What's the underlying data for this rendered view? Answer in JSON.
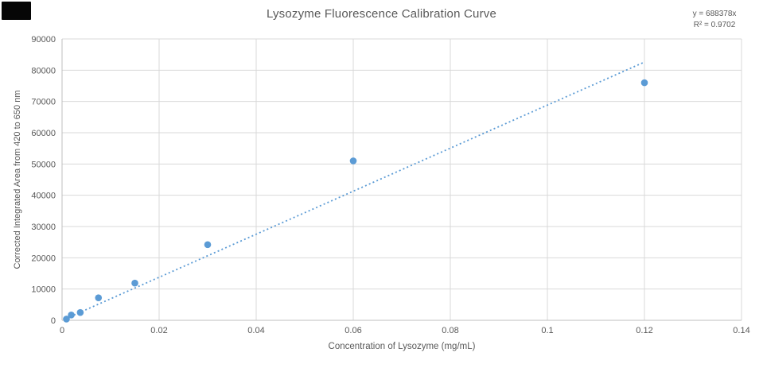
{
  "corner_artifact": {
    "color": "#060606"
  },
  "chart_data": {
    "type": "scatter",
    "title": "Lysozyme Fluorescence Calibration Curve",
    "xlabel": "Concentration of Lysozyme (mg/mL)",
    "ylabel": "Corrected Integrated Area from 420 to 650 nm",
    "xlim": [
      0,
      0.14
    ],
    "ylim": [
      0,
      90000
    ],
    "xticks": [
      0,
      0.02,
      0.04,
      0.06,
      0.08,
      0.1,
      0.12,
      0.14
    ],
    "xtick_labels": [
      "0",
      "0.02",
      "0.04",
      "0.06",
      "0.08",
      "0.1",
      "0.12",
      "0.14"
    ],
    "yticks": [
      0,
      10000,
      20000,
      30000,
      40000,
      50000,
      60000,
      70000,
      80000,
      90000
    ],
    "ytick_labels": [
      "0",
      "10000",
      "20000",
      "30000",
      "40000",
      "50000",
      "60000",
      "70000",
      "80000",
      "90000"
    ],
    "grid": true,
    "legend": "none",
    "series": [
      {
        "name": "calibration-points",
        "marker": "circle",
        "marker_color": "#5B9BD5",
        "points": [
          [
            0.0009,
            400
          ],
          [
            0.0019,
            1700
          ],
          [
            0.00375,
            2500
          ],
          [
            0.0075,
            7200
          ],
          [
            0.015,
            11900
          ],
          [
            0.03,
            24200
          ],
          [
            0.06,
            51000
          ],
          [
            0.12,
            76000
          ]
        ]
      }
    ],
    "trendline": {
      "equation_label": "y = 688378x",
      "r2_label": "R² = 0.9702",
      "slope": 688378,
      "intercept": 0,
      "style": "dotted",
      "color": "#5B9BD5",
      "x_start": 0.0009,
      "x_end": 0.12
    },
    "colors": {
      "text": "#595959",
      "gridline": "#D9D9D9",
      "axis_line": "#BFBFBF",
      "marker": "#5B9BD5",
      "background": "#FFFFFF"
    }
  }
}
